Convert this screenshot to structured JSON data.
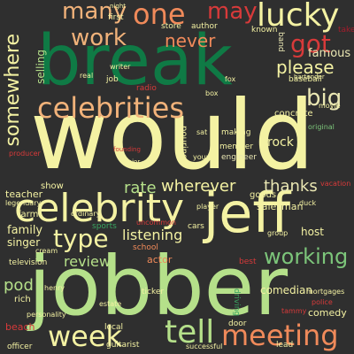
{
  "colors": {
    "background": "#2f2f2f",
    "light_yellow": "#f4f2a3",
    "cream": "#eae7b3",
    "light_green": "#b5e08a",
    "mid_green": "#7cc57a",
    "green": "#3aa561",
    "dark_green": "#0f7a45",
    "orange": "#f08a5a",
    "peach": "#f1b27a",
    "red": "#d73a3a",
    "dark_red": "#a51c2c"
  },
  "words": [
    {
      "text": "would",
      "color": "light_yellow"
    },
    {
      "text": "jobber",
      "color": "light_green"
    },
    {
      "text": "break",
      "color": "dark_green"
    },
    {
      "text": "jeff",
      "color": "light_yellow"
    },
    {
      "text": "celebrity",
      "color": "light_yellow"
    },
    {
      "text": "celebrities",
      "color": "peach"
    },
    {
      "text": "lucky",
      "color": "light_yellow"
    },
    {
      "text": "meeting",
      "color": "orange"
    },
    {
      "text": "week",
      "color": "light_yellow"
    },
    {
      "text": "tell",
      "color": "light_green"
    },
    {
      "text": "many",
      "color": "peach"
    },
    {
      "text": "one",
      "color": "orange"
    },
    {
      "text": "may",
      "color": "red"
    },
    {
      "text": "work",
      "color": "peach"
    },
    {
      "text": "never",
      "color": "orange"
    },
    {
      "text": "got",
      "color": "red"
    },
    {
      "text": "please",
      "color": "light_yellow"
    },
    {
      "text": "big",
      "color": "cream"
    },
    {
      "text": "somewhere",
      "color": "light_yellow"
    },
    {
      "text": "type",
      "color": "light_yellow"
    },
    {
      "text": "working",
      "color": "mid_green"
    },
    {
      "text": "review",
      "color": "light_green"
    },
    {
      "text": "listening",
      "color": "light_yellow"
    },
    {
      "text": "wherever",
      "color": "light_yellow"
    },
    {
      "text": "thanks",
      "color": "cream"
    },
    {
      "text": "rate",
      "color": "light_green"
    },
    {
      "text": "pod",
      "color": "light_green"
    },
    {
      "text": "famous",
      "color": "cream"
    },
    {
      "text": "rock",
      "color": "light_yellow"
    },
    {
      "text": "family",
      "color": "light_yellow"
    },
    {
      "text": "singer",
      "color": "light_yellow"
    },
    {
      "text": "actor",
      "color": "orange"
    },
    {
      "text": "host",
      "color": "light_yellow"
    },
    {
      "text": "comedian",
      "color": "light_yellow"
    },
    {
      "text": "comedy",
      "color": "light_yellow"
    },
    {
      "text": "salesman",
      "color": "light_yellow"
    },
    {
      "text": "goods",
      "color": "light_yellow"
    },
    {
      "text": "concrete",
      "color": "light_yellow"
    },
    {
      "text": "baseball",
      "color": "light_yellow"
    },
    {
      "text": "pouring",
      "color": "light_yellow"
    },
    {
      "text": "making",
      "color": "light_yellow"
    },
    {
      "text": "member",
      "color": "light_yellow"
    },
    {
      "text": "engineer",
      "color": "cream"
    },
    {
      "text": "selling",
      "color": "light_green"
    },
    {
      "text": "first",
      "color": "light_yellow"
    },
    {
      "text": "store",
      "color": "light_yellow"
    },
    {
      "text": "author",
      "color": "light_yellow"
    },
    {
      "text": "known",
      "color": "light_yellow"
    },
    {
      "text": "bartender",
      "color": "light_yellow"
    },
    {
      "text": "band",
      "color": "cream"
    },
    {
      "text": "take",
      "color": "dark_red"
    },
    {
      "text": "teacher",
      "color": "light_yellow"
    },
    {
      "text": "farm",
      "color": "light_yellow"
    },
    {
      "text": "show",
      "color": "light_yellow"
    },
    {
      "text": "sports",
      "color": "green"
    },
    {
      "text": "cars",
      "color": "light_yellow"
    },
    {
      "text": "school",
      "color": "orange"
    },
    {
      "text": "television",
      "color": "light_yellow"
    },
    {
      "text": "rich",
      "color": "light_yellow"
    },
    {
      "text": "beach",
      "color": "red"
    },
    {
      "text": "personality",
      "color": "light_yellow"
    },
    {
      "text": "officer",
      "color": "light_yellow"
    },
    {
      "text": "guitarist",
      "color": "light_yellow"
    },
    {
      "text": "successful",
      "color": "light_yellow"
    },
    {
      "text": "door",
      "color": "light_yellow"
    },
    {
      "text": "lead",
      "color": "light_yellow"
    },
    {
      "text": "mortgages",
      "color": "light_yellow"
    },
    {
      "text": "police",
      "color": "red"
    },
    {
      "text": "best",
      "color": "red"
    },
    {
      "text": "driving",
      "color": "green"
    },
    {
      "text": "ticker",
      "color": "light_yellow"
    },
    {
      "text": "local",
      "color": "light_yellow"
    },
    {
      "text": "henry",
      "color": "light_yellow"
    },
    {
      "text": "estate",
      "color": "light_yellow"
    },
    {
      "text": "ordinary",
      "color": "light_yellow"
    },
    {
      "text": "player",
      "color": "light_yellow"
    },
    {
      "text": "uncommon",
      "color": "red"
    },
    {
      "text": "radio",
      "color": "red"
    },
    {
      "text": "job",
      "color": "light_yellow"
    },
    {
      "text": "writer",
      "color": "light_yellow"
    },
    {
      "text": "duck",
      "color": "light_yellow"
    },
    {
      "text": "original",
      "color": "mid_green"
    },
    {
      "text": "young",
      "color": "light_yellow"
    },
    {
      "text": "legendary",
      "color": "light_yellow"
    },
    {
      "text": "producer",
      "color": "red"
    },
    {
      "text": "movie",
      "color": "light_yellow"
    },
    {
      "text": "vacation",
      "color": "red"
    },
    {
      "text": "cream",
      "color": "light_yellow"
    },
    {
      "text": "group",
      "color": "light_yellow"
    },
    {
      "text": "fox",
      "color": "light_yellow"
    },
    {
      "text": "real",
      "color": "light_yellow"
    },
    {
      "text": "night",
      "color": "light_yellow"
    },
    {
      "text": "box",
      "color": "light_yellow"
    },
    {
      "text": "sat",
      "color": "light_yellow"
    },
    {
      "text": "tammy",
      "color": "red"
    },
    {
      "text": "founding",
      "color": "red"
    },
    {
      "text": "major",
      "color": "light_yellow"
    }
  ]
}
